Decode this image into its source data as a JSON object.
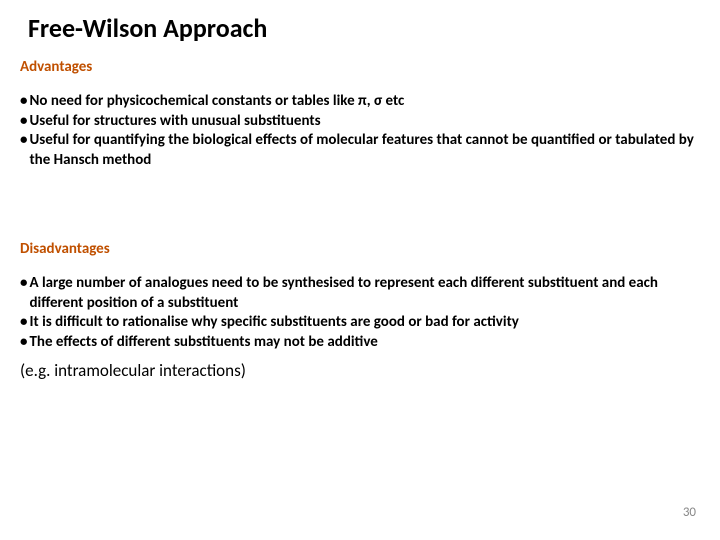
{
  "title": "Free-Wilson Approach",
  "advantages": {
    "header": "Advantages",
    "bullets": [
      "No need for physicochemical constants or tables like π, σ etc",
      "Useful for structures with unusual substituents",
      "Useful for quantifying the biological effects of molecular features that cannot be quantified or tabulated by the Hansch method"
    ]
  },
  "disadvantages": {
    "header": "Disadvantages",
    "bullets": [
      "A large number of analogues need to be synthesised to represent each different substituent and each different position of a substituent",
      "It is difficult to rationalise why specific substituents are good or bad for activity",
      "The effects of different substituents may not be additive"
    ],
    "extra": "(e.g. intramolecular interactions)"
  },
  "page_number": "30",
  "colors": {
    "header_color": "#c05000",
    "text_color": "#000000",
    "page_num_color": "#888888"
  }
}
